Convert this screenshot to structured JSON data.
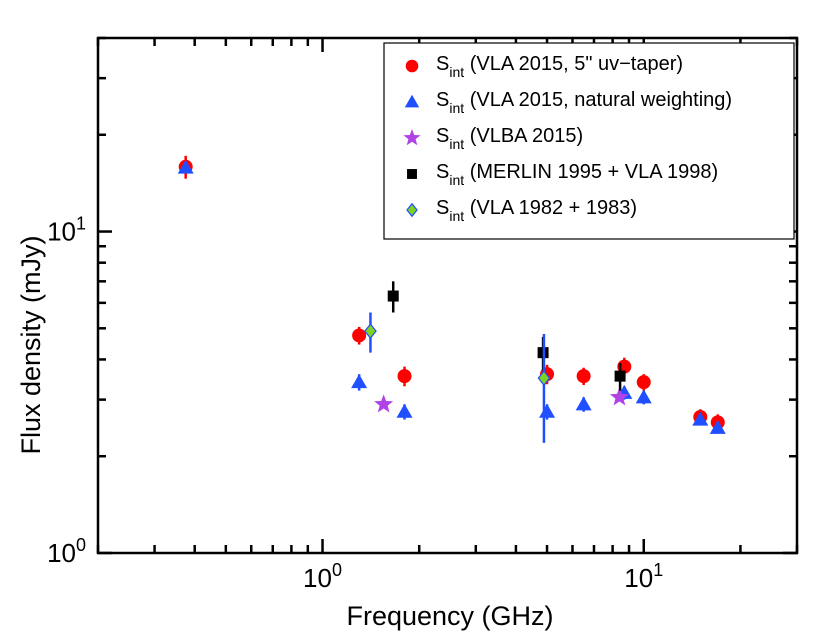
{
  "chart_data": {
    "type": "scatter",
    "title": "",
    "xlabel": "Frequency (GHz)",
    "ylabel": "Flux density (mJy)",
    "xscale": "log",
    "yscale": "log",
    "xlim": [
      0.2,
      30
    ],
    "ylim": [
      1,
      40
    ],
    "x_tick_labels": [
      {
        "value": 1,
        "base": "10",
        "exp": "0"
      },
      {
        "value": 10,
        "base": "10",
        "exp": "1"
      }
    ],
    "y_tick_labels": [
      {
        "value": 1,
        "base": "10",
        "exp": "0"
      },
      {
        "value": 10,
        "base": "10",
        "exp": "1"
      }
    ],
    "legend_position": "top-right",
    "series": [
      {
        "name": "VLA 2015, 5\" uv-taper",
        "label_main": "S",
        "label_sub": "int",
        "label_rest": " (VLA 2015, 5\" uv−taper)",
        "marker": "circle",
        "color": "#ff0000",
        "points": [
          {
            "x": 0.375,
            "y": 15.9,
            "err": 1.3
          },
          {
            "x": 1.3,
            "y": 4.75,
            "err": 0.3
          },
          {
            "x": 1.8,
            "y": 3.55,
            "err": 0.25
          },
          {
            "x": 5.0,
            "y": 3.6,
            "err": 0.25
          },
          {
            "x": 6.5,
            "y": 3.55,
            "err": 0.22
          },
          {
            "x": 8.7,
            "y": 3.8,
            "err": 0.25
          },
          {
            "x": 10.0,
            "y": 3.4,
            "err": 0.2
          },
          {
            "x": 15.0,
            "y": 2.65,
            "err": 0.15
          },
          {
            "x": 17.0,
            "y": 2.55,
            "err": 0.15
          }
        ]
      },
      {
        "name": "VLA 2015, natural weighting",
        "label_main": "S",
        "label_sub": "int",
        "label_rest": " (VLA 2015, natural weighting)",
        "marker": "triangle",
        "color": "#1f4fff",
        "points": [
          {
            "x": 0.375,
            "y": 15.8,
            "err": 0
          },
          {
            "x": 1.3,
            "y": 3.4,
            "err": 0.2
          },
          {
            "x": 1.8,
            "y": 2.75,
            "err": 0.15
          },
          {
            "x": 5.0,
            "y": 2.75,
            "err": 0.15
          },
          {
            "x": 6.5,
            "y": 2.9,
            "err": 0.15
          },
          {
            "x": 8.7,
            "y": 3.15,
            "err": 0.15
          },
          {
            "x": 10.0,
            "y": 3.05,
            "err": 0.15
          },
          {
            "x": 15.0,
            "y": 2.6,
            "err": 0.1
          },
          {
            "x": 17.0,
            "y": 2.45,
            "err": 0.1
          }
        ]
      },
      {
        "name": "VLBA 2015",
        "label_main": "S",
        "label_sub": "int",
        "label_rest": " (VLBA 2015)",
        "marker": "star",
        "color": "#b142e8",
        "points": [
          {
            "x": 1.55,
            "y": 2.9,
            "err": 0
          },
          {
            "x": 8.4,
            "y": 3.05,
            "err": 0
          }
        ]
      },
      {
        "name": "MERLIN 1995 + VLA 1998",
        "label_main": "S",
        "label_sub": "int",
        "label_rest": " (MERLIN 1995 + VLA 1998)",
        "marker": "square",
        "color": "#000000",
        "points": [
          {
            "x": 1.66,
            "y": 6.3,
            "err": 0.7
          },
          {
            "x": 4.86,
            "y": 4.2,
            "err": 0.5
          },
          {
            "x": 8.44,
            "y": 3.55,
            "err": 0.35
          }
        ]
      },
      {
        "name": "VLA 1982 + 1983",
        "label_main": "S",
        "label_sub": "int",
        "label_rest": " (VLA 1982 + 1983)",
        "marker": "diamond",
        "color": "#7ed321",
        "points": [
          {
            "x": 1.41,
            "y": 4.9,
            "err": 0.7
          },
          {
            "x": 4.89,
            "y": 3.5,
            "err": 1.3
          }
        ]
      }
    ]
  }
}
